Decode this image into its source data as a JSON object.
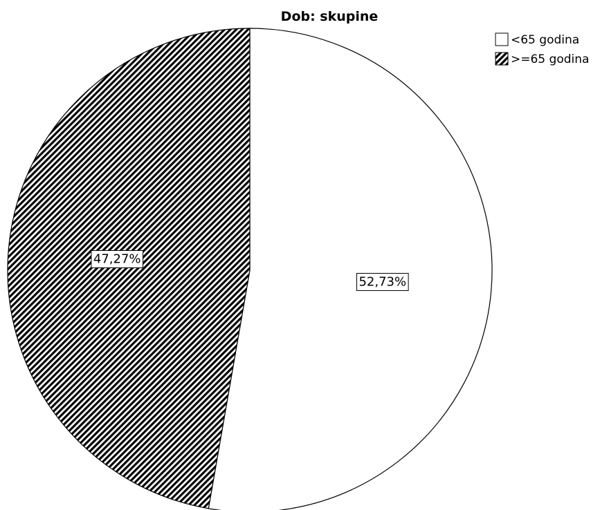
{
  "chart_data": {
    "type": "pie",
    "title": "Dob: skupine",
    "slices": [
      {
        "name": "<65 godina",
        "value": 52.73,
        "label": "52,73%",
        "fill": "#ffffff",
        "pattern": "none"
      },
      {
        "name": ">=65 godina",
        "value": 47.27,
        "label": "47,27%",
        "fill": "#000000",
        "pattern": "diagonal-stripes"
      }
    ],
    "start_angle": "12 o'clock",
    "direction": "clockwise",
    "legend": {
      "position": "top-right",
      "entries": [
        "<65 godina",
        ">=65 godina"
      ]
    },
    "colors": {
      "outline": "#000000",
      "background": "#ffffff"
    }
  }
}
